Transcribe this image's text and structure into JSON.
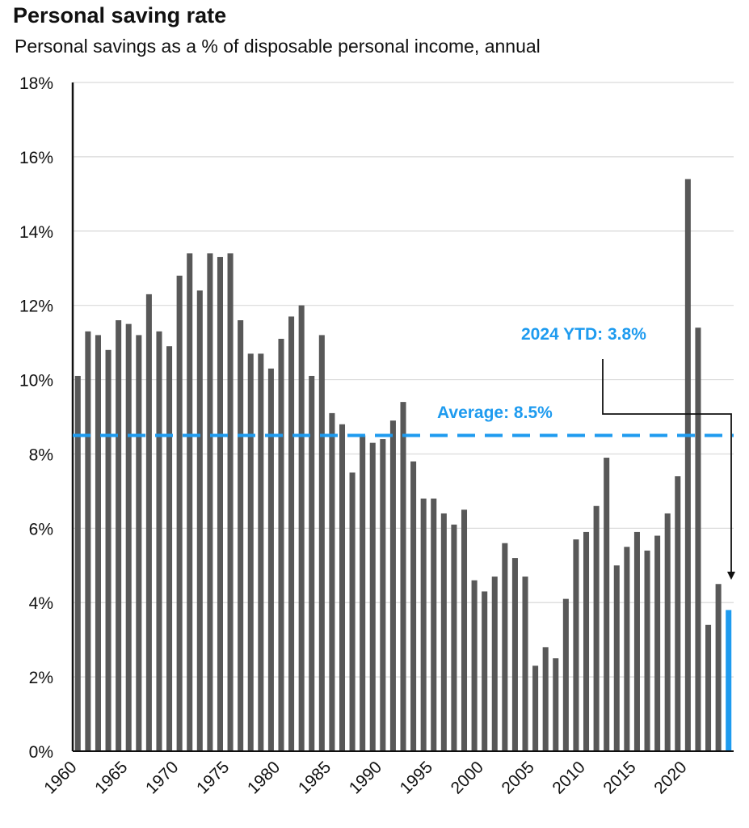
{
  "chart_data": {
    "type": "bar",
    "title": "Personal saving rate",
    "subtitle": "Personal savings as a % of disposable personal income, annual",
    "xlabel": "",
    "ylabel": "",
    "ylim": [
      0,
      18
    ],
    "yticks": [
      "0%",
      "2%",
      "4%",
      "6%",
      "8%",
      "10%",
      "12%",
      "14%",
      "16%",
      "18%"
    ],
    "xticks": [
      "1960",
      "1965",
      "1970",
      "1975",
      "1980",
      "1985",
      "1990",
      "1995",
      "2000",
      "2005",
      "2010",
      "2015",
      "2020"
    ],
    "years": [
      1960,
      1961,
      1962,
      1963,
      1964,
      1965,
      1966,
      1967,
      1968,
      1969,
      1970,
      1971,
      1972,
      1973,
      1974,
      1975,
      1976,
      1977,
      1978,
      1979,
      1980,
      1981,
      1982,
      1983,
      1984,
      1985,
      1986,
      1987,
      1988,
      1989,
      1990,
      1991,
      1992,
      1993,
      1994,
      1995,
      1996,
      1997,
      1998,
      1999,
      2000,
      2001,
      2002,
      2003,
      2004,
      2005,
      2006,
      2007,
      2008,
      2009,
      2010,
      2011,
      2012,
      2013,
      2014,
      2015,
      2016,
      2017,
      2018,
      2019,
      2020,
      2021,
      2022,
      2023,
      2024
    ],
    "values": [
      10.1,
      11.3,
      11.2,
      10.8,
      11.6,
      11.5,
      11.2,
      12.3,
      11.3,
      10.9,
      12.8,
      13.4,
      12.4,
      13.4,
      13.3,
      13.4,
      11.6,
      10.7,
      10.7,
      10.3,
      11.1,
      11.7,
      12.0,
      10.1,
      11.2,
      9.1,
      8.8,
      7.5,
      8.5,
      8.3,
      8.4,
      8.9,
      9.4,
      7.8,
      6.8,
      6.8,
      6.4,
      6.1,
      6.5,
      4.6,
      4.3,
      4.7,
      5.6,
      5.2,
      4.7,
      2.3,
      2.8,
      2.5,
      4.1,
      5.7,
      5.9,
      6.6,
      7.9,
      5.0,
      5.5,
      5.9,
      5.4,
      5.8,
      6.4,
      7.4,
      15.4,
      11.4,
      3.4,
      4.5,
      3.8
    ],
    "highlight_year": 2024,
    "average": 8.5,
    "average_label": "Average: 8.5%",
    "ytd_label": "2024 YTD:  3.8%",
    "bar_color": "#585858",
    "highlight_color": "#1e9bef",
    "average_color": "#1e9bef",
    "grid": true
  }
}
